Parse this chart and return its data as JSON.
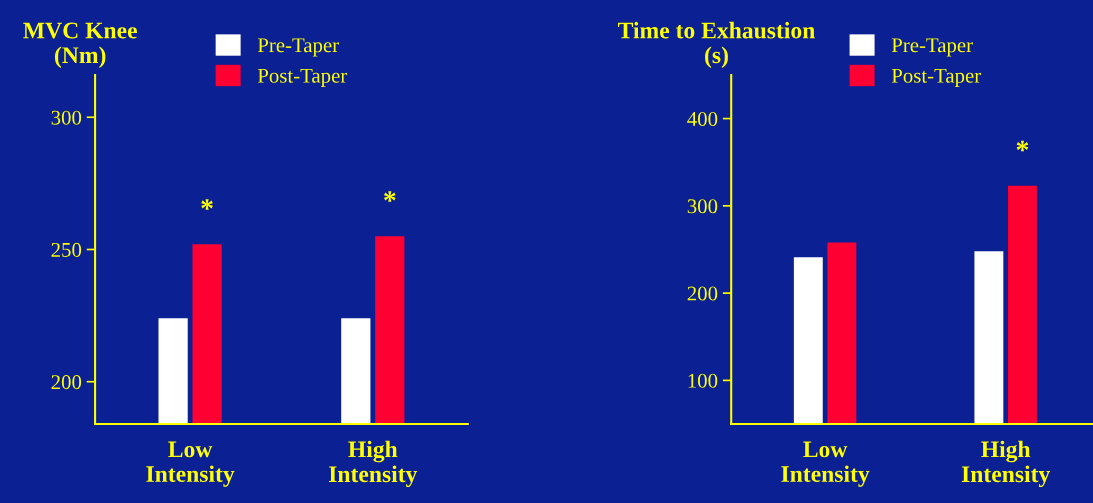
{
  "chart_data": [
    {
      "type": "bar",
      "ylabel": "MVC Knee\n(Nm)",
      "categories": [
        "Low\nIntensity",
        "High\nIntensity"
      ],
      "series": [
        {
          "name": "Pre-Taper",
          "color": "#ffffff",
          "values": [
            224,
            224
          ]
        },
        {
          "name": "Post-Taper",
          "color": "#ff0033",
          "values": [
            252,
            255
          ]
        }
      ],
      "ylim": [
        184,
        316
      ],
      "yticks": [
        200,
        250,
        300
      ],
      "grid": false,
      "legend": "top",
      "annotations": [
        {
          "text": "*",
          "x": "Low\nIntensity",
          "y": 252
        },
        {
          "text": "*",
          "x": "High\nIntensity",
          "y": 255
        }
      ]
    },
    {
      "type": "bar",
      "ylabel": "Time to Exhaustion\n(s)",
      "categories": [
        "Low\nIntensity",
        "High\nIntensity"
      ],
      "series": [
        {
          "name": "Pre-Taper",
          "color": "#ffffff",
          "values": [
            241,
            248
          ]
        },
        {
          "name": "Post-Taper",
          "color": "#ff0033",
          "values": [
            258,
            323
          ]
        }
      ],
      "ylim": [
        50,
        450
      ],
      "yticks": [
        100,
        200,
        300,
        400
      ],
      "grid": false,
      "legend": "top",
      "annotations": [
        {
          "text": "*",
          "x": "High\nIntensity",
          "y": 323
        }
      ]
    }
  ]
}
